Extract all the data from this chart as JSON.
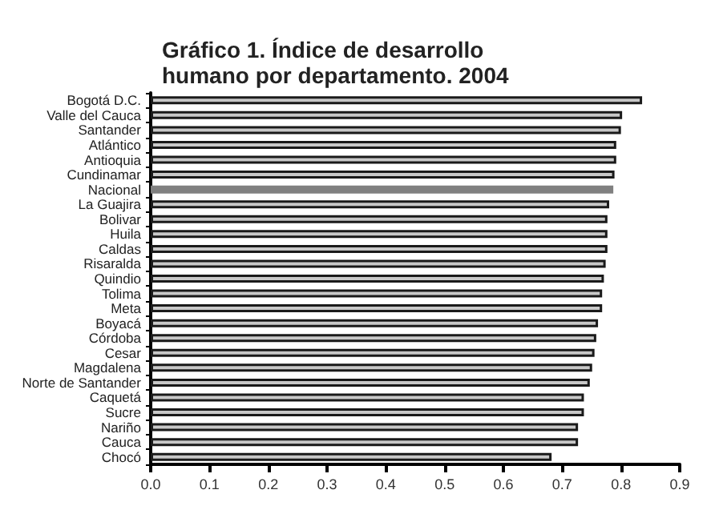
{
  "chart_data": {
    "type": "bar",
    "orientation": "horizontal",
    "title": "Gráfico 1. Índice de desarrollo\nhumano por departamento. 2004",
    "categories": [
      "Bogotá D.C.",
      "Valle del Cauca",
      "Santander",
      "Atlántico",
      "Antioquia",
      "Cundinamar",
      "Nacional",
      "La Guajira",
      "Bolivar",
      "Huila",
      "Caldas",
      "Risaralda",
      "Quindio",
      "Tolima",
      "Meta",
      "Boyacá",
      "Córdoba",
      "Cesar",
      "Magdalena",
      "Norte de Santander",
      "Caquetá",
      "Sucre",
      "Nariño",
      "Cauca",
      "Chocó"
    ],
    "values": [
      0.836,
      0.802,
      0.8,
      0.792,
      0.792,
      0.789,
      0.787,
      0.78,
      0.777,
      0.777,
      0.777,
      0.774,
      0.771,
      0.768,
      0.768,
      0.761,
      0.758,
      0.755,
      0.751,
      0.747,
      0.737,
      0.737,
      0.727,
      0.727,
      0.682
    ],
    "colors": [
      "#c8c8c8",
      "#c8c8c8",
      "#c8c8c8",
      "#c8c8c8",
      "#c8c8c8",
      "#c8c8c8",
      "#808080",
      "#c8c8c8",
      "#c8c8c8",
      "#c8c8c8",
      "#c8c8c8",
      "#c8c8c8",
      "#c8c8c8",
      "#c8c8c8",
      "#c8c8c8",
      "#c8c8c8",
      "#c8c8c8",
      "#c8c8c8",
      "#c8c8c8",
      "#c8c8c8",
      "#c8c8c8",
      "#c8c8c8",
      "#c8c8c8",
      "#c8c8c8",
      "#c8c8c8"
    ],
    "xlim": [
      0,
      0.9
    ],
    "xticks": [
      {
        "value": 0,
        "label": "0.0"
      },
      0.1,
      0.2,
      0.3,
      0.4,
      0.5,
      0.6,
      0.7,
      0.8,
      0.9
    ],
    "grid": false
  }
}
